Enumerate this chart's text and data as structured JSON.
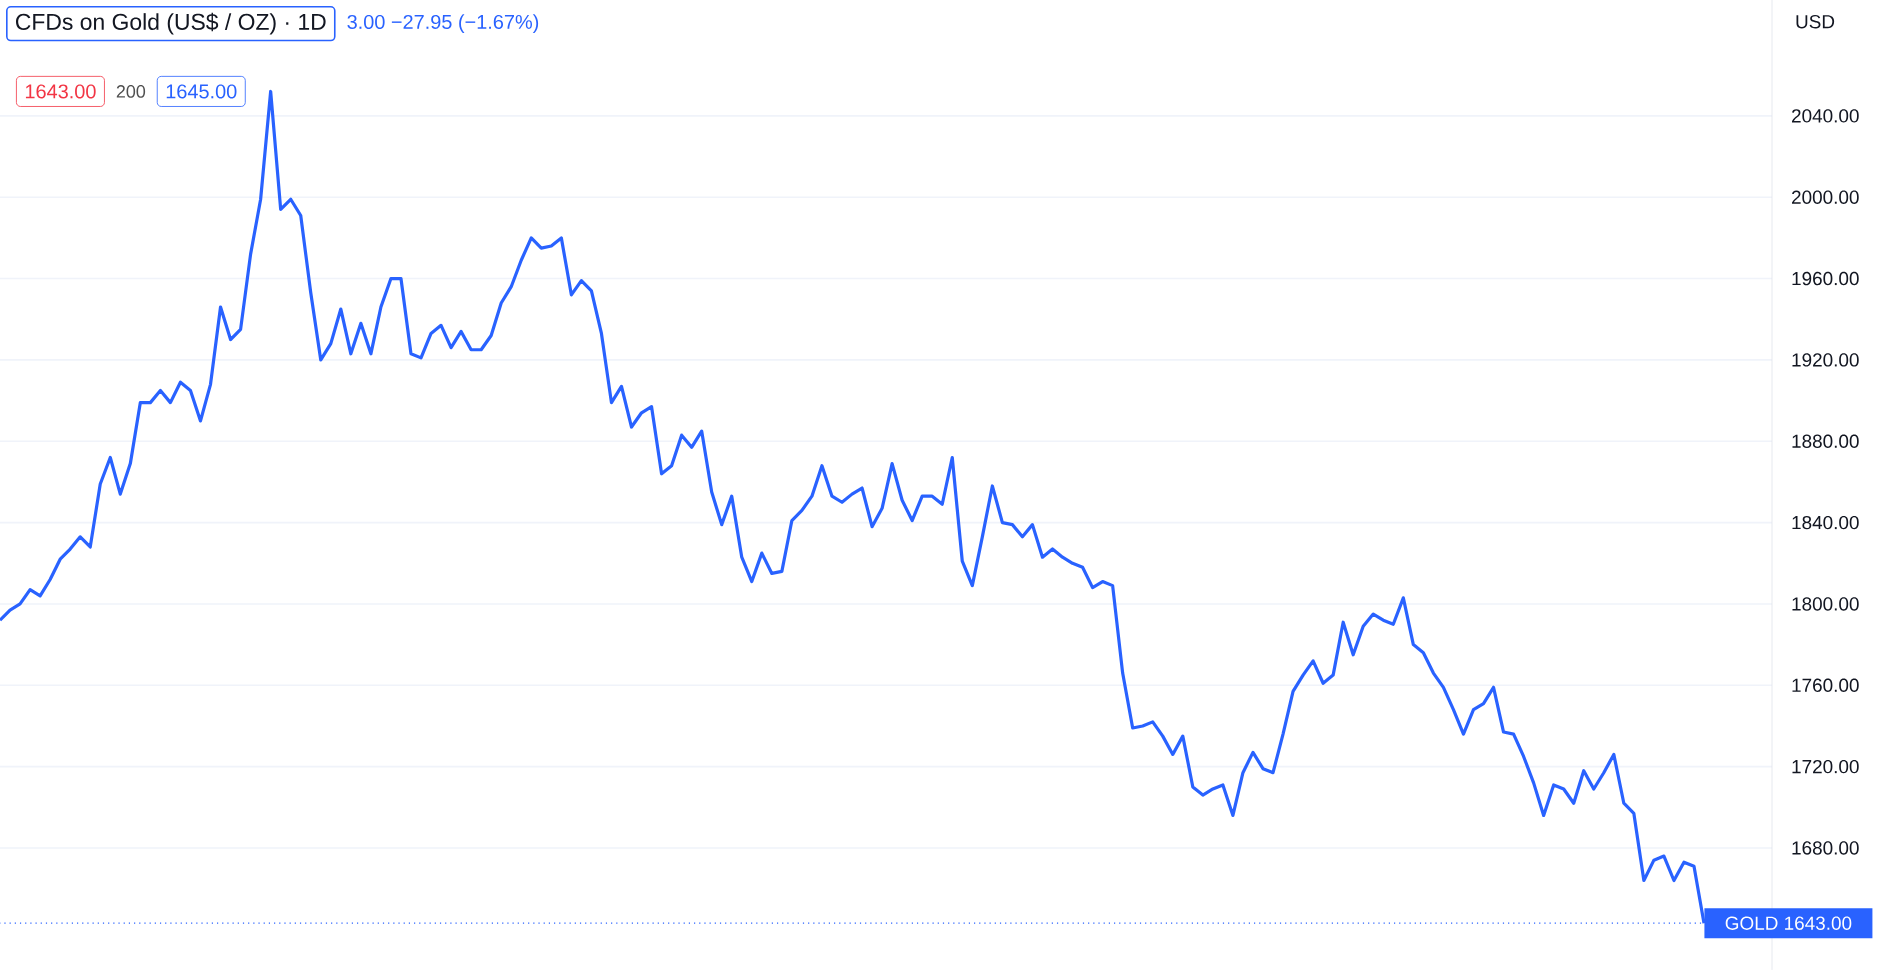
{
  "chart_data": {
    "type": "line",
    "title": "CFDs on Gold (US$ / OZ) · 1D",
    "ylabel": "USD",
    "annotations": [
      "3.00 −27.95 (−1.67%)",
      "1643.00",
      "200",
      "1645.00"
    ],
    "categories": [
      null,
      null,
      null,
      null,
      null,
      null,
      null,
      null,
      null,
      null,
      null,
      null,
      null,
      null,
      null,
      null,
      null,
      null,
      null,
      null,
      null,
      null,
      null,
      null,
      null,
      null,
      null,
      null,
      null,
      null,
      null,
      null,
      null,
      null,
      null,
      null,
      null,
      null,
      null,
      null,
      null,
      null,
      null,
      null,
      null,
      null,
      null,
      null,
      null,
      null,
      null,
      null,
      null,
      null,
      null,
      null,
      null,
      null,
      null,
      null,
      null,
      null,
      null,
      null,
      null,
      null,
      null,
      null,
      null,
      null,
      null,
      null,
      null,
      null,
      null,
      null,
      null,
      null,
      null,
      null,
      null,
      null,
      null,
      null,
      null,
      null,
      null,
      null,
      null,
      null,
      null,
      null,
      null,
      null,
      null,
      null,
      null,
      null,
      null,
      null,
      null,
      null,
      null,
      null,
      null,
      null,
      null,
      null,
      null,
      null,
      null,
      null,
      null,
      null,
      null,
      null,
      null,
      null,
      null,
      null,
      null,
      null,
      null,
      null,
      null,
      null,
      null,
      null,
      null,
      null,
      null,
      null,
      null,
      null,
      null,
      null,
      null,
      null,
      null,
      null,
      null,
      null,
      null,
      null,
      null,
      null,
      null,
      null,
      null,
      null,
      null,
      null,
      null,
      null,
      null,
      null,
      null,
      null,
      null,
      null,
      null,
      null,
      null,
      null,
      null,
      null,
      null,
      null,
      null,
      null,
      null
    ],
    "series": [
      {
        "color": "#2962ff",
        "values": [
          1792,
          1797,
          1800,
          1807,
          1804,
          1812,
          1822,
          1827,
          1833,
          1828,
          1859,
          1872,
          1854,
          1869,
          1899,
          1899,
          1905,
          1899,
          1909,
          1905,
          1890,
          1908,
          1946,
          1930,
          1935,
          1972,
          1999,
          2052,
          1994,
          1999,
          1991,
          1953,
          1920,
          1928,
          1945,
          1923,
          1938,
          1923,
          1946,
          1960,
          1960,
          1923,
          1921,
          1933,
          1937,
          1926,
          1934,
          1925,
          1925,
          1932,
          1948,
          1956,
          1969,
          1980,
          1975,
          1976,
          1980,
          1952,
          1959,
          1954,
          1933,
          1899,
          1907,
          1887,
          1894,
          1897,
          1864,
          1868,
          1883,
          1877,
          1885,
          1855,
          1839,
          1853,
          1823,
          1811,
          1825,
          1815,
          1816,
          1841,
          1846,
          1853,
          1868,
          1853,
          1850,
          1854,
          1857,
          1838,
          1847,
          1869,
          1851,
          1841,
          1853,
          1853,
          1849,
          1872,
          1821,
          1809,
          1833,
          1858,
          1840,
          1839,
          1833,
          1839,
          1823,
          1827,
          1823,
          1820,
          1818,
          1808,
          1811,
          1809,
          1766,
          1739,
          1740,
          1742,
          1735,
          1726,
          1735,
          1710,
          1706,
          1709,
          1711,
          1696,
          1717,
          1727,
          1719,
          1717,
          1736,
          1757,
          1765,
          1772,
          1761,
          1765,
          1791,
          1775,
          1789,
          1795,
          1792,
          1790,
          1803,
          1780,
          1776,
          1766,
          1759,
          1748,
          1736,
          1748,
          1751,
          1759,
          1737,
          1736,
          1725,
          1712,
          1696,
          1711,
          1709,
          1702,
          1718,
          1709,
          1717,
          1726,
          1702,
          1697,
          1664,
          1674,
          1676,
          1664,
          1673,
          1671,
          1643
        ]
      }
    ],
    "ylim": [
      1620,
      2097
    ],
    "yticks": [
      {
        "value": 1680,
        "label": "1680.00"
      },
      {
        "value": 1720,
        "label": "1720.00"
      },
      {
        "value": 1760,
        "label": "1760.00"
      },
      {
        "value": 1800,
        "label": "1800.00"
      },
      {
        "value": 1840,
        "label": "1840.00"
      },
      {
        "value": 1880,
        "label": "1880.00"
      },
      {
        "value": 1920,
        "label": "1920.00"
      },
      {
        "value": 1960,
        "label": "1960.00"
      },
      {
        "value": 2000,
        "label": "2000.00"
      },
      {
        "value": 2040,
        "label": "2040.00"
      }
    ],
    "grid": "y",
    "ref_lines": [
      {
        "axis": "y",
        "value": 1643,
        "label": "GOLD 1643.00",
        "color": "#2962ff",
        "line_style": "dotted"
      }
    ],
    "marker": "none",
    "line_style": "solid"
  }
}
